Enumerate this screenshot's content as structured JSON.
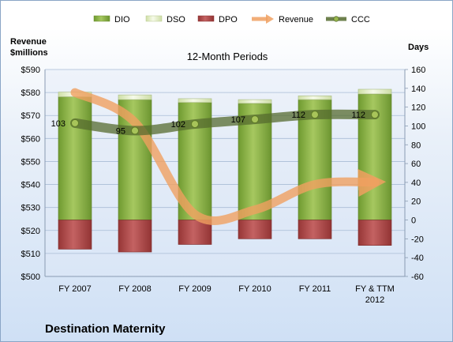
{
  "chart_data": {
    "type": "bar",
    "title": "12-Month Periods",
    "footer": "Destination Maternity",
    "categories": [
      "FY 2007",
      "FY 2008",
      "FY 2009",
      "FY 2010",
      "FY 2011",
      "FY & TTM 2012"
    ],
    "y_left": {
      "label_line1": "Revenue",
      "label_line2": "$millions",
      "min": 500,
      "max": 590,
      "step": 10,
      "ticks": [
        "$500",
        "$510",
        "$520",
        "$530",
        "$540",
        "$550",
        "$560",
        "$570",
        "$580",
        "$590"
      ]
    },
    "y_right": {
      "label": "Days",
      "min": -60,
      "max": 160,
      "step": 20,
      "ticks": [
        "-60",
        "-40",
        "-20",
        "0",
        "20",
        "40",
        "60",
        "80",
        "100",
        "120",
        "140",
        "160"
      ]
    },
    "series": [
      {
        "name": "DIO",
        "axis": "right",
        "type": "bar",
        "values": [
          131,
          128,
          125,
          124,
          128,
          134
        ],
        "color": "#8db04b"
      },
      {
        "name": "DSO",
        "axis": "right",
        "type": "bar",
        "values": [
          5,
          5,
          4,
          4,
          4,
          5
        ],
        "color": "#e3eec8"
      },
      {
        "name": "DPO",
        "axis": "right",
        "type": "bar",
        "values": [
          -31,
          -34,
          -26,
          -20,
          -20,
          -27
        ],
        "color": "#b04b4b"
      },
      {
        "name": "Revenue",
        "axis": "left",
        "type": "line",
        "values": [
          580,
          567,
          527,
          529,
          540,
          541
        ],
        "color": "#f0a060"
      },
      {
        "name": "CCC",
        "axis": "right",
        "type": "line",
        "values": [
          103,
          95,
          102,
          107,
          112,
          112
        ],
        "color": "#556b2f"
      }
    ],
    "ccc_labels": [
      "103",
      "95",
      "102",
      "107",
      "112",
      "112"
    ],
    "grid": true,
    "legend": "top"
  }
}
